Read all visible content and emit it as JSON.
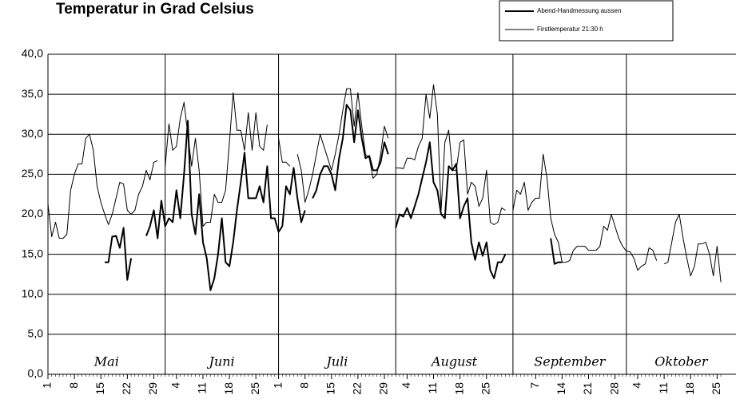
{
  "chart_data": {
    "type": "line",
    "title": "Temperatur in Grad Celsius",
    "legend": "top-right",
    "x": [
      0,
      1,
      2,
      3,
      4,
      5,
      6,
      7,
      8,
      9,
      10,
      11,
      12,
      13,
      14,
      15,
      16,
      17,
      18,
      19,
      20,
      21,
      22,
      23,
      24,
      25,
      26,
      27,
      28,
      29,
      30,
      31,
      32,
      33,
      34,
      35,
      36,
      37,
      38,
      39,
      40,
      41,
      42,
      43,
      44,
      45,
      46,
      47,
      48,
      49,
      50,
      51,
      52,
      53,
      54,
      55,
      56,
      57,
      58,
      59,
      60,
      61,
      62,
      63,
      64,
      65,
      66,
      67,
      68,
      69,
      70,
      71,
      72,
      73,
      74,
      75,
      76,
      77,
      78,
      79,
      80,
      81,
      82,
      83,
      84,
      85,
      86,
      87,
      88,
      89,
      90,
      91,
      92,
      93,
      94,
      95,
      96,
      97,
      98,
      99,
      100,
      101,
      102,
      103,
      104,
      105,
      106,
      107,
      108,
      109,
      110,
      111,
      112,
      113,
      114,
      115,
      116,
      117,
      118,
      119,
      120,
      121,
      122,
      123,
      124,
      125,
      126,
      127,
      128,
      129,
      130,
      131,
      132,
      133,
      134,
      135,
      136,
      137,
      138,
      139,
      140,
      141,
      142,
      143,
      144,
      145,
      146,
      147,
      148,
      149,
      150,
      151,
      152,
      153,
      154,
      155,
      156,
      157,
      158,
      159,
      160,
      161,
      162,
      163,
      164,
      165,
      166,
      167,
      168,
      169,
      170,
      171,
      172,
      173,
      174,
      175,
      176,
      177,
      178
    ],
    "series": [
      {
        "name": "Abend-Handmessung aussen",
        "color": "#000000",
        "line_width": 2,
        "values": [
          null,
          null,
          null,
          null,
          null,
          null,
          null,
          null,
          null,
          null,
          null,
          null,
          null,
          null,
          null,
          14,
          14,
          17.2,
          17.3,
          15.8,
          18.3,
          11.8,
          14.5,
          null,
          null,
          null,
          17.3,
          18.5,
          20.5,
          17,
          21.7,
          18.5,
          19.5,
          19,
          23,
          19.5,
          25,
          31.7,
          20,
          17.5,
          22.5,
          16.5,
          14.5,
          10.5,
          12,
          15,
          19.5,
          14,
          13.5,
          16.5,
          20.5,
          24,
          27.7,
          22,
          22,
          22,
          23.5,
          21.5,
          26,
          19.5,
          19.5,
          17.8,
          18.5,
          23.5,
          22.5,
          25.8,
          22,
          19,
          20.5,
          null,
          22,
          23,
          25,
          26,
          26,
          25,
          23,
          27,
          29.5,
          33.7,
          33,
          29,
          33,
          29.5,
          27,
          27.3,
          25.5,
          25.5,
          26.5,
          29,
          27.5,
          null,
          18.3,
          20,
          19.7,
          20.8,
          19.5,
          21,
          22.5,
          24.5,
          26.5,
          29,
          24,
          23,
          20,
          19.5,
          26,
          25.5,
          26.3,
          19.5,
          21,
          22,
          16.5,
          14.3,
          16.5,
          14.8,
          16.5,
          13,
          12,
          14,
          14,
          15,
          null,
          null,
          null,
          null,
          null,
          null,
          null,
          null,
          null,
          null,
          null,
          17,
          13.8,
          14,
          14,
          null,
          null,
          null,
          null,
          null,
          null,
          null,
          null,
          null,
          null,
          null,
          null,
          null,
          null,
          null,
          null,
          null,
          null,
          null,
          null,
          null,
          null,
          null,
          null,
          null,
          null,
          null,
          null,
          null,
          null,
          null,
          null,
          null,
          null,
          null,
          null,
          null,
          null,
          null,
          null,
          null,
          null
        ]
      },
      {
        "name": "Firstlemperatur 21:30 h",
        "color": "#000000",
        "line_width": 1,
        "values": [
          21.3,
          17.2,
          19,
          17,
          17,
          17.5,
          23,
          25,
          26.3,
          26.3,
          29.5,
          30,
          28,
          23.5,
          21.5,
          20,
          18.7,
          20,
          22,
          24,
          23.8,
          20.5,
          20,
          20.5,
          22.5,
          23.5,
          25.5,
          24.3,
          26.5,
          26.7,
          null,
          26,
          31.3,
          28,
          28.5,
          32,
          34,
          30,
          26,
          29.5,
          25.5,
          18.5,
          19,
          19,
          22.5,
          21.5,
          21.5,
          23,
          29,
          35.2,
          30.5,
          30.5,
          28,
          32.7,
          28,
          32.7,
          28.5,
          28,
          31.2,
          null,
          null,
          29.5,
          26.5,
          26.5,
          26,
          null,
          27.5,
          25.5,
          21.5,
          23,
          25,
          27.5,
          30,
          28.5,
          27,
          25.5,
          27.5,
          30,
          33,
          35.7,
          35.7,
          31,
          35.2,
          31,
          27.5,
          27,
          24.5,
          25,
          27.5,
          31,
          29.5,
          null,
          25.8,
          25.8,
          25.7,
          27,
          27,
          26.8,
          28.5,
          29.5,
          35,
          32,
          36.2,
          32.5,
          20.5,
          29,
          30.5,
          25.5,
          25.5,
          29,
          29.3,
          22.5,
          24,
          23.5,
          21,
          22,
          25.5,
          19,
          18.7,
          19,
          20.8,
          20.5,
          null,
          20.5,
          23,
          22.5,
          24,
          20.5,
          21.5,
          22,
          22,
          27.5,
          24.5,
          19.5,
          17.5,
          16.5,
          14,
          14,
          14.2,
          15.5,
          16,
          16,
          16,
          15.5,
          15.5,
          15.5,
          16,
          18.5,
          18,
          20,
          18.5,
          17,
          16,
          15.4,
          15.3,
          14.5,
          13,
          13.5,
          13.8,
          15.8,
          15.5,
          14.2,
          null,
          13.8,
          14,
          16.5,
          19,
          20,
          17,
          14.5,
          12.3,
          13.5,
          16.3,
          16.3,
          16.5,
          15,
          12.3,
          16,
          11.5
        ]
      }
    ],
    "xlim": [
      0,
      182
    ],
    "xticks": [
      {
        "value": 0,
        "label": "1"
      },
      {
        "value": 7,
        "label": "8"
      },
      {
        "value": 14,
        "label": "15"
      },
      {
        "value": 21,
        "label": "22"
      },
      {
        "value": 28,
        "label": "29"
      },
      {
        "value": 34,
        "label": "4"
      },
      {
        "value": 41,
        "label": "11"
      },
      {
        "value": 48,
        "label": "18"
      },
      {
        "value": 55,
        "label": "25"
      },
      {
        "value": 61,
        "label": "1"
      },
      {
        "value": 68,
        "label": "8"
      },
      {
        "value": 75,
        "label": "15"
      },
      {
        "value": 82,
        "label": "22"
      },
      {
        "value": 89,
        "label": "29"
      },
      {
        "value": 95,
        "label": "4"
      },
      {
        "value": 102,
        "label": "11"
      },
      {
        "value": 109,
        "label": "18"
      },
      {
        "value": 116,
        "label": "25"
      },
      {
        "value": 129,
        "label": "7"
      },
      {
        "value": 136,
        "label": "14"
      },
      {
        "value": 143,
        "label": "21"
      },
      {
        "value": 150,
        "label": "28"
      },
      {
        "value": 156,
        "label": "4"
      },
      {
        "value": 163,
        "label": "11"
      },
      {
        "value": 170,
        "label": "18"
      },
      {
        "value": 177,
        "label": "25"
      }
    ],
    "ylim": [
      0,
      40
    ],
    "yticks": [
      {
        "value": 0,
        "label": "0,0"
      },
      {
        "value": 5,
        "label": "5,0"
      },
      {
        "value": 10,
        "label": "10,0"
      },
      {
        "value": 15,
        "label": "15,0"
      },
      {
        "value": 20,
        "label": "20,0"
      },
      {
        "value": 25,
        "label": "25,0"
      },
      {
        "value": 30,
        "label": "30,0"
      },
      {
        "value": 35,
        "label": "35,0"
      },
      {
        "value": 40,
        "label": "40,0"
      }
    ],
    "grid": true,
    "months": [
      {
        "label": "Mai",
        "start": 0
      },
      {
        "label": "Juni",
        "start": 31
      },
      {
        "label": "Juli",
        "start": 61
      },
      {
        "label": "August",
        "start": 92
      },
      {
        "label": "September",
        "start": 123
      },
      {
        "label": "Oktober",
        "start": 153
      }
    ]
  }
}
